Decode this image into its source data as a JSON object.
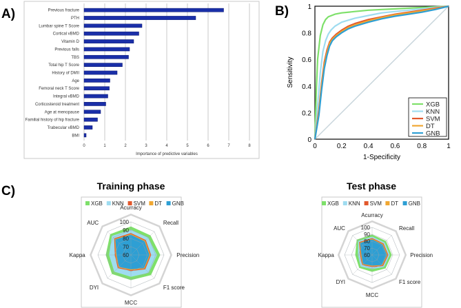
{
  "panels": {
    "a": "A)",
    "b": "B)",
    "c": "C)"
  },
  "chart_data": [
    {
      "type": "bar",
      "orientation": "horizontal",
      "xlabel": "Importance of predictive variables",
      "xlim": [
        0,
        8
      ],
      "xticks": [
        "0",
        "1",
        "2",
        "3",
        "4",
        "5",
        "6",
        "7",
        "8"
      ],
      "categories": [
        "Previous fracture",
        "PTH",
        "Lumbar spine T Score",
        "Cortical vBMD",
        "Vitamin D",
        "Previous falls",
        "TBS",
        "Total hip T Score",
        "History of DMII",
        "Age",
        "Femoral neck T Score",
        "Integral vBMD",
        "Corticosteroid treatment",
        "Age at menopause",
        "Familial history of hip fracture",
        "Trabecular vBMD",
        "BMI"
      ],
      "values": [
        6.75,
        5.4,
        2.8,
        2.65,
        2.4,
        2.2,
        2.15,
        1.85,
        1.6,
        1.25,
        1.22,
        1.15,
        1.05,
        0.8,
        0.65,
        0.4,
        0.1
      ],
      "color": "#1a2fa8"
    },
    {
      "type": "line",
      "xlabel": "1-Specificity",
      "ylabel": "Sensitivity",
      "xlim": [
        0,
        1
      ],
      "ylim": [
        0,
        1
      ],
      "xticks": [
        "0",
        "0.2",
        "0.4",
        "0.6",
        "0.8",
        "1"
      ],
      "yticks": [
        "0",
        "0.2",
        "0.4",
        "0.6",
        "0.8",
        "1"
      ],
      "diagonal_color": "#c9d6dc",
      "series": [
        {
          "name": "XGB",
          "color": "#7ee06a",
          "x": [
            0,
            0.01,
            0.02,
            0.04,
            0.06,
            0.08,
            0.1,
            0.15,
            0.2,
            0.3,
            0.4,
            0.5,
            0.6,
            0.7,
            0.8,
            0.9,
            1
          ],
          "y": [
            0,
            0.35,
            0.6,
            0.78,
            0.86,
            0.9,
            0.92,
            0.94,
            0.95,
            0.96,
            0.97,
            0.975,
            0.98,
            0.985,
            0.99,
            0.995,
            1
          ]
        },
        {
          "name": "KNN",
          "color": "#9fdcf0",
          "x": [
            0,
            0.02,
            0.04,
            0.06,
            0.08,
            0.1,
            0.12,
            0.15,
            0.2,
            0.3,
            0.4,
            0.5,
            0.6,
            0.7,
            0.8,
            0.9,
            1
          ],
          "y": [
            0,
            0.25,
            0.5,
            0.66,
            0.74,
            0.79,
            0.82,
            0.85,
            0.88,
            0.91,
            0.93,
            0.95,
            0.96,
            0.97,
            0.98,
            0.99,
            1
          ]
        },
        {
          "name": "SVM",
          "color": "#e2582c",
          "x": [
            0,
            0.03,
            0.05,
            0.07,
            0.09,
            0.11,
            0.13,
            0.16,
            0.2,
            0.25,
            0.3,
            0.4,
            0.5,
            0.6,
            0.7,
            0.8,
            0.9,
            1
          ],
          "y": [
            0,
            0.22,
            0.42,
            0.58,
            0.67,
            0.73,
            0.76,
            0.79,
            0.82,
            0.85,
            0.87,
            0.9,
            0.92,
            0.94,
            0.955,
            0.97,
            0.985,
            1
          ]
        },
        {
          "name": "DT",
          "color": "#f0a732",
          "x": [
            0,
            0.03,
            0.05,
            0.07,
            0.09,
            0.11,
            0.13,
            0.16,
            0.2,
            0.25,
            0.3,
            0.4,
            0.5,
            0.6,
            0.7,
            0.8,
            0.9,
            1
          ],
          "y": [
            0,
            0.2,
            0.4,
            0.56,
            0.65,
            0.72,
            0.75,
            0.78,
            0.81,
            0.84,
            0.86,
            0.89,
            0.915,
            0.935,
            0.95,
            0.965,
            0.98,
            1
          ]
        },
        {
          "name": "GNB",
          "color": "#2e9fd4",
          "x": [
            0,
            0.03,
            0.05,
            0.07,
            0.09,
            0.11,
            0.13,
            0.16,
            0.2,
            0.25,
            0.3,
            0.4,
            0.5,
            0.6,
            0.7,
            0.8,
            0.9,
            1
          ],
          "y": [
            0,
            0.18,
            0.37,
            0.53,
            0.63,
            0.7,
            0.74,
            0.77,
            0.8,
            0.83,
            0.85,
            0.88,
            0.905,
            0.925,
            0.94,
            0.955,
            0.975,
            1
          ]
        }
      ]
    },
    {
      "type": "radar",
      "title": "Training phase",
      "axes": [
        "Acurracy",
        "Recall",
        "Precision",
        "F1 score",
        "MCC",
        "DYI",
        "Kappa",
        "AUC"
      ],
      "rmin": 60,
      "rmax": 100,
      "rticks": [
        "100",
        "90",
        "80",
        "70",
        "60"
      ],
      "series": [
        {
          "name": "XGB",
          "color": "#7ee06a",
          "values": [
            94,
            93,
            95,
            94,
            90,
            92,
            90,
            95
          ]
        },
        {
          "name": "KNN",
          "color": "#9fdcf0",
          "values": [
            90,
            89,
            91,
            90,
            86,
            88,
            86,
            92
          ]
        },
        {
          "name": "SVM",
          "color": "#e2582c",
          "values": [
            86,
            85,
            84,
            84,
            79,
            82,
            79,
            88
          ]
        },
        {
          "name": "DT",
          "color": "#f0a732",
          "values": [
            85,
            84,
            83,
            83,
            78,
            81,
            78,
            87
          ]
        },
        {
          "name": "GNB",
          "color": "#2e9fd4",
          "values": [
            84,
            83,
            82,
            82,
            77,
            80,
            77,
            86
          ]
        }
      ]
    },
    {
      "type": "radar",
      "title": "Test phase",
      "axes": [
        "Acurracy",
        "Recall",
        "Precision",
        "F1 score",
        "MCC",
        "DYI",
        "Kappa",
        "AUC"
      ],
      "rmin": 60,
      "rmax": 100,
      "rticks": [
        "100",
        "90",
        "80",
        "70",
        "60"
      ],
      "series": [
        {
          "name": "XGB",
          "color": "#7ee06a",
          "values": [
            89,
            88,
            88,
            87,
            84,
            86,
            84,
            91
          ]
        },
        {
          "name": "KNN",
          "color": "#9fdcf0",
          "values": [
            86,
            85,
            85,
            84,
            80,
            83,
            80,
            88
          ]
        },
        {
          "name": "SVM",
          "color": "#e2582c",
          "values": [
            84,
            83,
            83,
            82,
            77,
            80,
            77,
            86
          ]
        },
        {
          "name": "DT",
          "color": "#f0a732",
          "values": [
            83,
            82,
            82,
            81,
            76,
            79,
            76,
            85
          ]
        },
        {
          "name": "GNB",
          "color": "#2e9fd4",
          "values": [
            82,
            81,
            81,
            80,
            75,
            78,
            75,
            84
          ]
        }
      ]
    }
  ]
}
